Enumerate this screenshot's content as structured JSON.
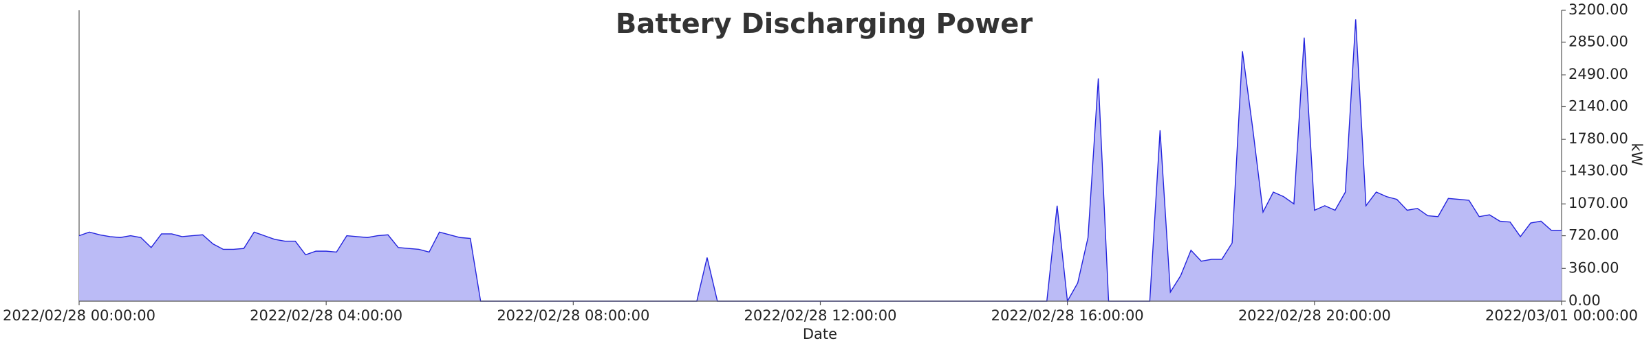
{
  "chart_data": {
    "type": "area",
    "title": "Battery Discharging Power",
    "xlabel": "Date",
    "ylabel": "kW",
    "x": [
      "2022/02/28 00:00:00",
      "2022/02/28 00:10:00",
      "2022/02/28 00:20:00",
      "2022/02/28 00:30:00",
      "2022/02/28 00:40:00",
      "2022/02/28 00:50:00",
      "2022/02/28 01:00:00",
      "2022/02/28 01:10:00",
      "2022/02/28 01:20:00",
      "2022/02/28 01:30:00",
      "2022/02/28 01:40:00",
      "2022/02/28 01:50:00",
      "2022/02/28 02:00:00",
      "2022/02/28 02:10:00",
      "2022/02/28 02:20:00",
      "2022/02/28 02:30:00",
      "2022/02/28 02:40:00",
      "2022/02/28 02:50:00",
      "2022/02/28 03:00:00",
      "2022/02/28 03:10:00",
      "2022/02/28 03:20:00",
      "2022/02/28 03:30:00",
      "2022/02/28 03:40:00",
      "2022/02/28 03:50:00",
      "2022/02/28 04:00:00",
      "2022/02/28 04:10:00",
      "2022/02/28 04:20:00",
      "2022/02/28 04:30:00",
      "2022/02/28 04:40:00",
      "2022/02/28 04:50:00",
      "2022/02/28 05:00:00",
      "2022/02/28 05:10:00",
      "2022/02/28 05:20:00",
      "2022/02/28 05:30:00",
      "2022/02/28 05:40:00",
      "2022/02/28 05:50:00",
      "2022/02/28 06:00:00",
      "2022/02/28 06:10:00",
      "2022/02/28 06:20:00",
      "2022/02/28 06:30:00",
      "2022/02/28 06:40:00",
      "2022/02/28 06:50:00",
      "2022/02/28 07:00:00",
      "2022/02/28 07:10:00",
      "2022/02/28 07:20:00",
      "2022/02/28 07:30:00",
      "2022/02/28 07:40:00",
      "2022/02/28 07:50:00",
      "2022/02/28 08:00:00",
      "2022/02/28 08:10:00",
      "2022/02/28 08:20:00",
      "2022/02/28 08:30:00",
      "2022/02/28 08:40:00",
      "2022/02/28 08:50:00",
      "2022/02/28 09:00:00",
      "2022/02/28 09:10:00",
      "2022/02/28 09:20:00",
      "2022/02/28 09:30:00",
      "2022/02/28 09:40:00",
      "2022/02/28 09:50:00",
      "2022/02/28 10:00:00",
      "2022/02/28 10:10:00",
      "2022/02/28 10:20:00",
      "2022/02/28 10:30:00",
      "2022/02/28 10:40:00",
      "2022/02/28 10:50:00",
      "2022/02/28 11:00:00",
      "2022/02/28 11:10:00",
      "2022/02/28 11:20:00",
      "2022/02/28 11:30:00",
      "2022/02/28 11:40:00",
      "2022/02/28 11:50:00",
      "2022/02/28 12:00:00",
      "2022/02/28 12:10:00",
      "2022/02/28 12:20:00",
      "2022/02/28 12:30:00",
      "2022/02/28 12:40:00",
      "2022/02/28 12:50:00",
      "2022/02/28 13:00:00",
      "2022/02/28 13:10:00",
      "2022/02/28 13:20:00",
      "2022/02/28 13:30:00",
      "2022/02/28 13:40:00",
      "2022/02/28 13:50:00",
      "2022/02/28 14:00:00",
      "2022/02/28 14:10:00",
      "2022/02/28 14:20:00",
      "2022/02/28 14:30:00",
      "2022/02/28 14:40:00",
      "2022/02/28 14:50:00",
      "2022/02/28 15:00:00",
      "2022/02/28 15:10:00",
      "2022/02/28 15:20:00",
      "2022/02/28 15:30:00",
      "2022/02/28 15:40:00",
      "2022/02/28 15:50:00",
      "2022/02/28 16:00:00",
      "2022/02/28 16:10:00",
      "2022/02/28 16:20:00",
      "2022/02/28 16:30:00",
      "2022/02/28 16:40:00",
      "2022/02/28 16:50:00",
      "2022/02/28 17:00:00",
      "2022/02/28 17:10:00",
      "2022/02/28 17:20:00",
      "2022/02/28 17:30:00",
      "2022/02/28 17:40:00",
      "2022/02/28 17:50:00",
      "2022/02/28 18:00:00",
      "2022/02/28 18:10:00",
      "2022/02/28 18:20:00",
      "2022/02/28 18:30:00",
      "2022/02/28 18:40:00",
      "2022/02/28 18:50:00",
      "2022/02/28 19:00:00",
      "2022/02/28 19:10:00",
      "2022/02/28 19:20:00",
      "2022/02/28 19:30:00",
      "2022/02/28 19:40:00",
      "2022/02/28 19:50:00",
      "2022/02/28 20:00:00",
      "2022/02/28 20:10:00",
      "2022/02/28 20:20:00",
      "2022/02/28 20:30:00",
      "2022/02/28 20:40:00",
      "2022/02/28 20:50:00",
      "2022/02/28 21:00:00",
      "2022/02/28 21:10:00",
      "2022/02/28 21:20:00",
      "2022/02/28 21:30:00",
      "2022/02/28 21:40:00",
      "2022/02/28 21:50:00",
      "2022/02/28 22:00:00",
      "2022/02/28 22:10:00",
      "2022/02/28 22:20:00",
      "2022/02/28 22:30:00",
      "2022/02/28 22:40:00",
      "2022/02/28 22:50:00",
      "2022/02/28 23:00:00",
      "2022/02/28 23:10:00",
      "2022/02/28 23:20:00",
      "2022/02/28 23:30:00",
      "2022/02/28 23:40:00",
      "2022/02/28 23:50:00",
      "2022/03/01 00:00:00"
    ],
    "values": [
      720,
      760,
      730,
      710,
      700,
      720,
      700,
      590,
      740,
      740,
      710,
      720,
      730,
      630,
      570,
      570,
      580,
      760,
      720,
      680,
      660,
      660,
      510,
      550,
      550,
      540,
      720,
      710,
      700,
      720,
      730,
      590,
      580,
      570,
      540,
      760,
      730,
      700,
      690,
      0,
      0,
      0,
      0,
      0,
      0,
      0,
      0,
      0,
      0,
      0,
      0,
      0,
      0,
      0,
      0,
      0,
      0,
      0,
      0,
      0,
      0,
      480,
      0,
      0,
      0,
      0,
      0,
      0,
      0,
      0,
      0,
      0,
      0,
      0,
      0,
      0,
      0,
      0,
      0,
      0,
      0,
      0,
      0,
      0,
      0,
      0,
      0,
      0,
      0,
      0,
      0,
      0,
      0,
      0,
      0,
      1050,
      0,
      200,
      700,
      2450,
      0,
      0,
      0,
      0,
      0,
      1880,
      100,
      280,
      560,
      440,
      460,
      460,
      640,
      2750,
      1900,
      980,
      1200,
      1150,
      1070,
      2900,
      1000,
      1050,
      1000,
      1200,
      3100,
      1050,
      1200,
      1150,
      1120,
      1000,
      1020,
      940,
      930,
      1130,
      1120,
      1110,
      930,
      950,
      880,
      870,
      710,
      860,
      880,
      780,
      780
    ],
    "color": "#2222dd",
    "fill": "#bbbbf6",
    "xlim": [
      "2022/02/28 00:00:00",
      "2022/03/01 00:00:00"
    ],
    "xticks": [
      "2022/02/28 00:00:00",
      "2022/02/28 04:00:00",
      "2022/02/28 08:00:00",
      "2022/02/28 12:00:00",
      "2022/02/28 16:00:00",
      "2022/02/28 20:00:00",
      "2022/03/01 00:00:00"
    ],
    "ylim": [
      0,
      3200
    ],
    "yticks": [
      {
        "value": 0,
        "label": "0.00"
      },
      {
        "value": 360,
        "label": "360.00"
      },
      {
        "value": 720,
        "label": "720.00"
      },
      {
        "value": 1070,
        "label": "1070.00"
      },
      {
        "value": 1430,
        "label": "1430.00"
      },
      {
        "value": 1780,
        "label": "1780.00"
      },
      {
        "value": 2140,
        "label": "2140.00"
      },
      {
        "value": 2490,
        "label": "2490.00"
      },
      {
        "value": 2850,
        "label": "2850.00"
      },
      {
        "value": 3200,
        "label": "3200.00"
      }
    ]
  }
}
